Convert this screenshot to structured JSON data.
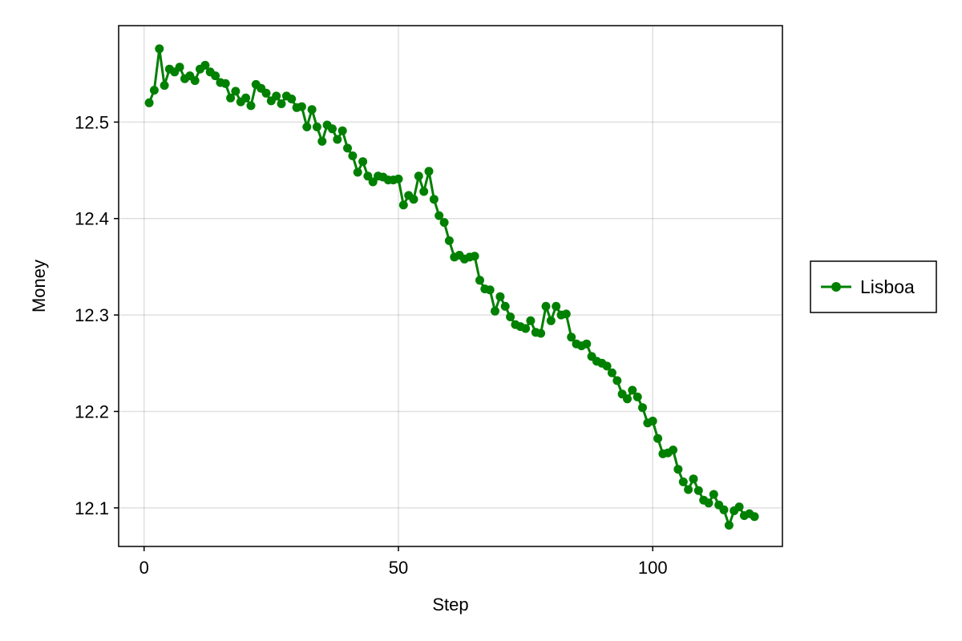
{
  "chart_data": {
    "type": "line",
    "xlabel": "Step",
    "ylabel": "Money",
    "xlim": [
      -5,
      125.5
    ],
    "ylim": [
      12.06,
      12.6
    ],
    "x_ticks": [
      0,
      50,
      100
    ],
    "x_tick_labels": [
      "0",
      "50",
      "100"
    ],
    "y_ticks": [
      12.1,
      12.2,
      12.3,
      12.4,
      12.5
    ],
    "y_tick_labels": [
      "12.1",
      "12.2",
      "12.3",
      "12.4",
      "12.5"
    ],
    "grid": true,
    "legend": {
      "position": "right",
      "entries": [
        "Lisboa"
      ]
    },
    "series": [
      {
        "name": "Lisboa",
        "color": "#008000",
        "x": [
          1,
          2,
          3,
          4,
          5,
          6,
          7,
          8,
          9,
          10,
          11,
          12,
          13,
          14,
          15,
          16,
          17,
          18,
          19,
          20,
          21,
          22,
          23,
          24,
          25,
          26,
          27,
          28,
          29,
          30,
          31,
          32,
          33,
          34,
          35,
          36,
          37,
          38,
          39,
          40,
          41,
          42,
          43,
          44,
          45,
          46,
          47,
          48,
          49,
          50,
          51,
          52,
          53,
          54,
          55,
          56,
          57,
          58,
          59,
          60,
          61,
          62,
          63,
          64,
          65,
          66,
          67,
          68,
          69,
          70,
          71,
          72,
          73,
          74,
          75,
          76,
          77,
          78,
          79,
          80,
          81,
          82,
          83,
          84,
          85,
          86,
          87,
          88,
          89,
          90,
          91,
          92,
          93,
          94,
          95,
          96,
          97,
          98,
          99,
          100,
          101,
          102,
          103,
          104,
          105,
          106,
          107,
          108,
          109,
          110,
          111,
          112,
          113,
          114,
          115,
          116,
          117,
          118,
          119,
          120
        ],
        "y": [
          12.52,
          12.533,
          12.576,
          12.538,
          12.555,
          12.552,
          12.557,
          12.545,
          12.548,
          12.543,
          12.555,
          12.559,
          12.552,
          12.548,
          12.541,
          12.54,
          12.525,
          12.532,
          12.521,
          12.525,
          12.517,
          12.539,
          12.535,
          12.53,
          12.522,
          12.527,
          12.519,
          12.527,
          12.524,
          12.515,
          12.516,
          12.495,
          12.513,
          12.495,
          12.48,
          12.497,
          12.493,
          12.482,
          12.491,
          12.473,
          12.465,
          12.448,
          12.459,
          12.444,
          12.438,
          12.444,
          12.443,
          12.44,
          12.44,
          12.441,
          12.414,
          12.424,
          12.42,
          12.444,
          12.428,
          12.449,
          12.42,
          12.403,
          12.396,
          12.377,
          12.36,
          12.362,
          12.358,
          12.36,
          12.361,
          12.336,
          12.327,
          12.326,
          12.304,
          12.319,
          12.309,
          12.298,
          12.29,
          12.288,
          12.286,
          12.294,
          12.282,
          12.281,
          12.309,
          12.294,
          12.309,
          12.3,
          12.301,
          12.277,
          12.27,
          12.268,
          12.27,
          12.257,
          12.252,
          12.25,
          12.247,
          12.24,
          12.232,
          12.218,
          12.213,
          12.222,
          12.215,
          12.204,
          12.188,
          12.19,
          12.172,
          12.156,
          12.157,
          12.16,
          12.14,
          12.127,
          12.119,
          12.13,
          12.118,
          12.108,
          12.105,
          12.114,
          12.103,
          12.098,
          12.082,
          12.097,
          12.101,
          12.092,
          12.094,
          12.091
        ]
      }
    ]
  }
}
